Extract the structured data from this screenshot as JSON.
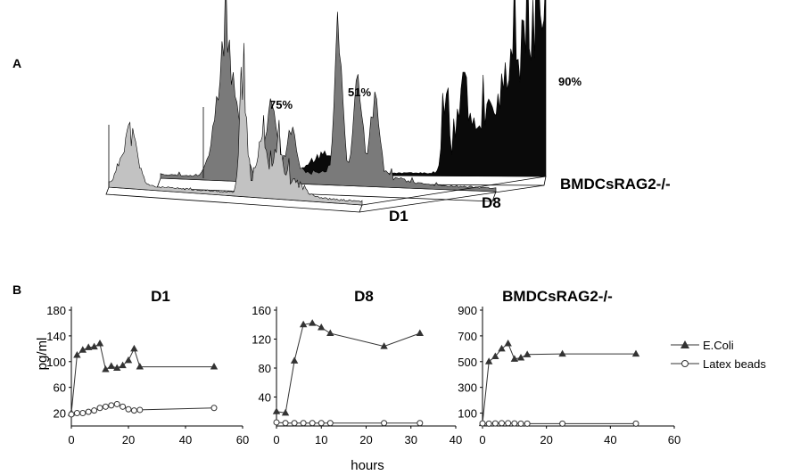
{
  "panel_a": {
    "letter": "A",
    "tracks": [
      {
        "label": "D1",
        "percent": "75%",
        "fill": "#c2c2c2"
      },
      {
        "label": "D8",
        "percent": "51%",
        "fill": "#7a7a7a"
      },
      {
        "label": "BMDCsRAG2-/-",
        "percent": "90%",
        "fill": "#0a0a0a"
      }
    ]
  },
  "panel_b": {
    "letter": "B",
    "legend": [
      {
        "name": "E.Coli",
        "marker": "triangle"
      },
      {
        "name": "Latex beads",
        "marker": "circle"
      }
    ]
  },
  "chart_data": [
    {
      "type": "line",
      "title": "D1",
      "ylabel": "pg/ml",
      "xlabel": "",
      "xlim": [
        0,
        60
      ],
      "ylim": [
        0,
        180
      ],
      "xticks": [
        0,
        20,
        40,
        60
      ],
      "yticks": [
        20,
        60,
        100,
        140,
        180
      ],
      "series": [
        {
          "name": "E.Coli",
          "marker": "triangle",
          "x": [
            0,
            2,
            4,
            6,
            8,
            10,
            12,
            14,
            16,
            18,
            20,
            22,
            24,
            50
          ],
          "y": [
            20,
            110,
            118,
            122,
            123,
            128,
            88,
            93,
            90,
            94,
            102,
            120,
            92,
            92
          ]
        },
        {
          "name": "Latex beads",
          "marker": "circle",
          "x": [
            0,
            2,
            4,
            6,
            8,
            10,
            12,
            14,
            16,
            18,
            20,
            22,
            24,
            50
          ],
          "y": [
            18,
            20,
            20,
            22,
            24,
            28,
            30,
            32,
            34,
            30,
            26,
            24,
            25,
            28
          ]
        }
      ]
    },
    {
      "type": "line",
      "title": "D8",
      "ylabel": "",
      "xlabel": "hours",
      "xlim": [
        0,
        40
      ],
      "ylim": [
        0,
        160
      ],
      "xticks": [
        0,
        10,
        20,
        30,
        40
      ],
      "yticks": [
        40,
        80,
        120,
        160
      ],
      "series": [
        {
          "name": "E.Coli",
          "marker": "triangle",
          "x": [
            0,
            2,
            4,
            6,
            8,
            10,
            12,
            24,
            32
          ],
          "y": [
            20,
            18,
            90,
            140,
            142,
            136,
            128,
            110,
            128
          ]
        },
        {
          "name": "Latex beads",
          "marker": "circle",
          "x": [
            0,
            2,
            4,
            6,
            8,
            10,
            12,
            24,
            32
          ],
          "y": [
            5,
            4,
            4,
            4,
            4,
            4,
            4,
            4,
            4
          ]
        }
      ]
    },
    {
      "type": "line",
      "title": "BMDCsRAG2-/-",
      "ylabel": "",
      "xlabel": "",
      "xlim": [
        0,
        60
      ],
      "ylim": [
        0,
        900
      ],
      "xticks": [
        0,
        20,
        40,
        60
      ],
      "yticks": [
        100,
        300,
        500,
        700,
        900
      ],
      "series": [
        {
          "name": "E.Coli",
          "marker": "triangle",
          "x": [
            0,
            2,
            4,
            6,
            8,
            10,
            12,
            14,
            25,
            48
          ],
          "y": [
            20,
            500,
            540,
            600,
            640,
            520,
            530,
            555,
            560,
            560
          ]
        },
        {
          "name": "Latex beads",
          "marker": "circle",
          "x": [
            0,
            2,
            4,
            6,
            8,
            10,
            12,
            14,
            25,
            48
          ],
          "y": [
            20,
            18,
            20,
            22,
            22,
            20,
            18,
            18,
            18,
            18
          ]
        }
      ]
    }
  ]
}
